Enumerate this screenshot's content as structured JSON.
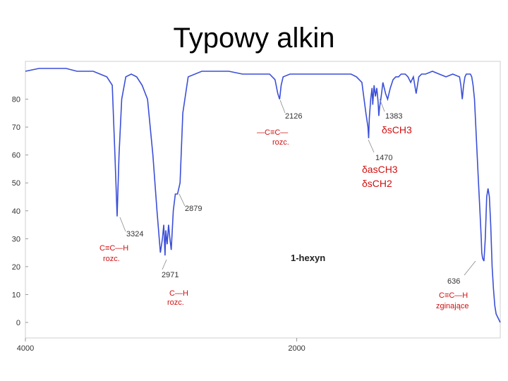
{
  "chart_data": {
    "type": "line",
    "title": "Typowy alkin",
    "compound": "1-hexyn",
    "xlim": [
      4000,
      500
    ],
    "ylim": [
      0,
      90
    ],
    "x_ticks": [
      "4000",
      "2000"
    ],
    "y_ticks": [
      "0",
      "10",
      "20",
      "30",
      "40",
      "50",
      "60",
      "70",
      "80"
    ],
    "series": [
      {
        "x": [
          4000,
          3900,
          3800,
          3700,
          3620,
          3560,
          3500,
          3450,
          3400,
          3360,
          3340,
          3324,
          3310,
          3290,
          3260,
          3220,
          3180,
          3140,
          3100,
          3060,
          3030,
          3005,
          2990,
          2980,
          2971,
          2965,
          2955,
          2945,
          2935,
          2925,
          2910,
          2895,
          2879,
          2860,
          2840,
          2800,
          2700,
          2600,
          2500,
          2400,
          2300,
          2200,
          2160,
          2140,
          2126,
          2115,
          2100,
          2050,
          2000,
          1900,
          1800,
          1700,
          1600,
          1560,
          1520,
          1490,
          1475,
          1470,
          1465,
          1455,
          1445,
          1440,
          1430,
          1420,
          1410,
          1400,
          1395,
          1390,
          1383,
          1375,
          1365,
          1355,
          1345,
          1330,
          1310,
          1290,
          1270,
          1250,
          1230,
          1200,
          1180,
          1160,
          1140,
          1120,
          1100,
          1080,
          1050,
          1000,
          950,
          900,
          850,
          800,
          790,
          780,
          770,
          760,
          750,
          740,
          730,
          720,
          710,
          700,
          690,
          680,
          670,
          660,
          650,
          640,
          636,
          630,
          620,
          610,
          600,
          590,
          580,
          570,
          560,
          550,
          540,
          530,
          520,
          510,
          500
        ],
        "values": [
          90,
          91,
          91,
          91,
          90,
          90,
          90,
          89,
          88,
          85,
          60,
          38,
          60,
          80,
          88,
          89,
          88,
          85,
          80,
          60,
          40,
          25,
          30,
          35,
          24,
          33,
          28,
          35,
          30,
          26,
          40,
          46,
          46,
          50,
          75,
          88,
          90,
          90,
          90,
          89,
          89,
          89,
          87,
          82,
          80,
          85,
          88,
          89,
          89,
          89,
          89,
          89,
          89,
          88,
          86,
          75,
          70,
          66,
          73,
          80,
          84,
          78,
          85,
          81,
          84,
          79,
          74,
          77,
          79,
          82,
          86,
          84,
          82,
          80,
          84,
          87,
          88,
          88,
          89,
          89,
          88,
          86,
          88,
          82,
          88,
          89,
          89,
          90,
          89,
          88,
          89,
          88,
          85,
          80,
          85,
          88,
          89,
          89,
          89,
          89,
          88,
          85,
          80,
          70,
          60,
          50,
          40,
          30,
          25,
          23,
          22,
          30,
          45,
          48,
          45,
          35,
          20,
          12,
          6,
          3,
          2,
          1,
          0
        ]
      }
    ],
    "annotations": [
      {
        "wavenumber": "3324",
        "bond": "C≡C—H",
        "note": "rozc."
      },
      {
        "wavenumber": "2971",
        "bond": "C—H",
        "note": "rozc."
      },
      {
        "wavenumber": "2879"
      },
      {
        "wavenumber": "2126",
        "bond": "—C≡C—",
        "note": "rozc."
      },
      {
        "wavenumber": "1470",
        "labels": [
          "δasCH3",
          "δsCH2"
        ]
      },
      {
        "wavenumber": "1383",
        "labels": [
          "δsCH3"
        ]
      },
      {
        "wavenumber": "636",
        "bond": "C≡C—H",
        "note": "zginające"
      }
    ],
    "colors": {
      "line": "#3b4fd8",
      "frame": "#cfcfcf",
      "annotation": "#d01010"
    }
  }
}
